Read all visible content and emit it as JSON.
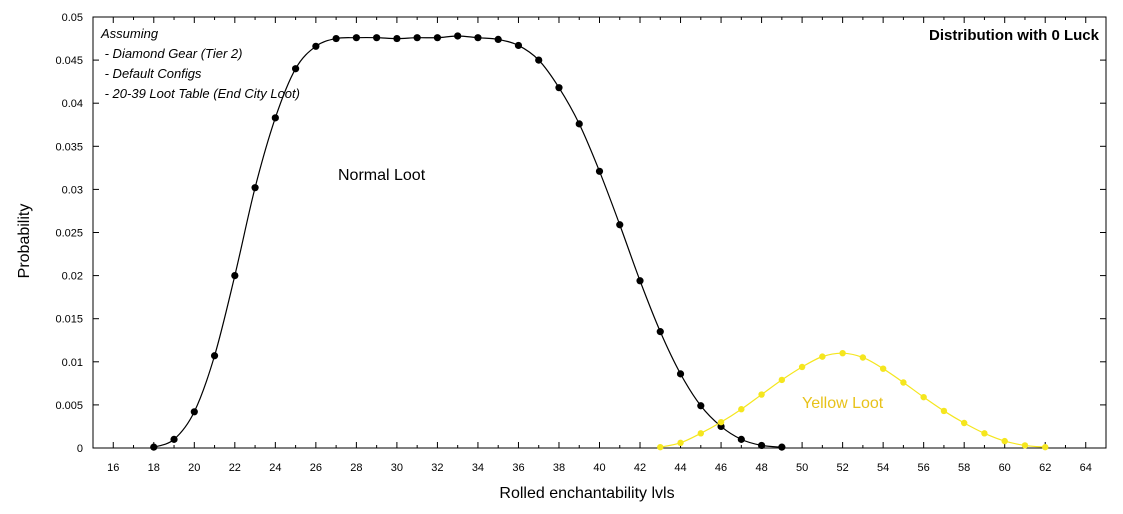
{
  "chart_data": {
    "type": "line",
    "title": "Distribution with 0 Luck",
    "xlabel": "Rolled enchantability lvls",
    "ylabel": "Probability",
    "xlim": [
      15,
      65
    ],
    "ylim": [
      0,
      0.05
    ],
    "x_ticks": [
      16,
      18,
      20,
      22,
      24,
      26,
      28,
      30,
      32,
      34,
      36,
      38,
      40,
      42,
      44,
      46,
      48,
      50,
      52,
      54,
      56,
      58,
      60,
      62,
      64
    ],
    "y_ticks": [
      0,
      0.005,
      0.01,
      0.015,
      0.02,
      0.025,
      0.03,
      0.035,
      0.04,
      0.045,
      0.05
    ],
    "y_tick_labels": [
      "0",
      "0.005",
      "0.01",
      "0.015",
      "0.02",
      "0.025",
      "0.03",
      "0.035",
      "0.04",
      "0.045",
      "0.05"
    ],
    "grid": false,
    "annotation_lines": [
      "Assuming",
      " - Diamond Gear (Tier 2)",
      " - Default Configs",
      " - 20-39 Loot Table (End City Loot)"
    ],
    "series": [
      {
        "name": "Normal Loot",
        "color": "#000000",
        "x": [
          18,
          19,
          20,
          21,
          22,
          23,
          24,
          25,
          26,
          27,
          28,
          29,
          30,
          31,
          32,
          33,
          34,
          35,
          36,
          37,
          38,
          39,
          40,
          41,
          42,
          43,
          44,
          45,
          46,
          47,
          48,
          49
        ],
        "y": [
          0.0001,
          0.001,
          0.0042,
          0.0107,
          0.02,
          0.0302,
          0.0383,
          0.044,
          0.0466,
          0.0475,
          0.0476,
          0.0476,
          0.0475,
          0.0476,
          0.0476,
          0.0478,
          0.0476,
          0.0474,
          0.0467,
          0.045,
          0.0418,
          0.0376,
          0.0321,
          0.0259,
          0.0194,
          0.0135,
          0.0086,
          0.0049,
          0.0025,
          0.001,
          0.0003,
          0.0001
        ]
      },
      {
        "name": "Yellow Loot",
        "color": "#f5e61e",
        "label_color": "#e8c21a",
        "x": [
          43,
          44,
          45,
          46,
          47,
          48,
          49,
          50,
          51,
          52,
          53,
          54,
          55,
          56,
          57,
          58,
          59,
          60,
          61,
          62
        ],
        "y": [
          0.0001,
          0.0006,
          0.0017,
          0.003,
          0.0045,
          0.0062,
          0.0079,
          0.0094,
          0.0106,
          0.011,
          0.0105,
          0.0092,
          0.0076,
          0.0059,
          0.0043,
          0.0029,
          0.0017,
          0.0008,
          0.0003,
          0.0001
        ]
      }
    ]
  }
}
